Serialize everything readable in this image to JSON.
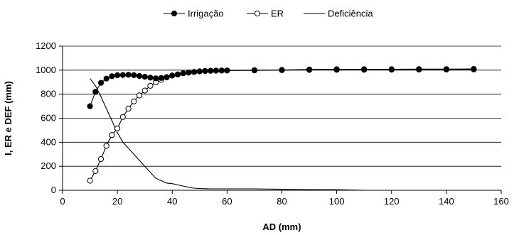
{
  "chart_data": {
    "type": "line",
    "xlabel": "AD (mm)",
    "ylabel": "I, ER e DEF (mm)",
    "xlim": [
      0,
      160
    ],
    "ylim": [
      0,
      1200
    ],
    "xticks": [
      "0",
      "20",
      "40",
      "60",
      "80",
      "100",
      "120",
      "140",
      "160"
    ],
    "yticks": [
      "0",
      "200",
      "400",
      "600",
      "800",
      "1000",
      "1200"
    ],
    "grid": "horizontal",
    "legend_position": "top",
    "series": [
      {
        "name": "Irrigação",
        "marker": "filled-circle",
        "color": "#000000",
        "x": [
          10,
          12,
          14,
          16,
          18,
          20,
          22,
          24,
          26,
          28,
          30,
          32,
          34,
          36,
          38,
          40,
          42,
          44,
          46,
          48,
          50,
          52,
          54,
          56,
          58,
          60,
          70,
          80,
          90,
          100,
          110,
          120,
          130,
          140,
          150
        ],
        "y": [
          700,
          820,
          895,
          930,
          950,
          958,
          960,
          962,
          958,
          952,
          945,
          938,
          932,
          935,
          942,
          955,
          965,
          975,
          980,
          985,
          990,
          993,
          995,
          996,
          997,
          997,
          998,
          1000,
          1002,
          1003,
          1003,
          1004,
          1005,
          1005,
          1006
        ]
      },
      {
        "name": "ER",
        "marker": "open-circle",
        "color": "#000000",
        "x": [
          10,
          12,
          14,
          16,
          18,
          20,
          22,
          24,
          26,
          28,
          30,
          32,
          34,
          36,
          38,
          40,
          42,
          44,
          46,
          48,
          50,
          52,
          54,
          56,
          58,
          60,
          70,
          80,
          90,
          100,
          110,
          120,
          130,
          140,
          150
        ],
        "y": [
          80,
          160,
          260,
          370,
          460,
          515,
          610,
          680,
          740,
          790,
          830,
          870,
          900,
          920,
          940,
          955,
          965,
          975,
          980,
          985,
          990,
          993,
          995,
          996,
          997,
          998,
          1000,
          1002,
          1006,
          1008,
          1008,
          1008,
          1009,
          1009,
          1010
        ]
      },
      {
        "name": "Deficiência",
        "marker": "none",
        "color": "#000000",
        "x": [
          10,
          12,
          14,
          16,
          18,
          20,
          22,
          24,
          26,
          28,
          30,
          32,
          34,
          36,
          38,
          40,
          42,
          44,
          46,
          48,
          50,
          52,
          54,
          56,
          58,
          60,
          70,
          80,
          90,
          100,
          110,
          120,
          130,
          140,
          150
        ],
        "y": [
          930,
          870,
          780,
          680,
          580,
          480,
          400,
          350,
          300,
          250,
          200,
          150,
          100,
          80,
          60,
          55,
          45,
          35,
          25,
          18,
          14,
          13,
          12,
          12,
          12,
          12,
          12,
          8,
          6,
          5,
          0,
          0,
          0,
          0,
          0
        ]
      }
    ]
  }
}
